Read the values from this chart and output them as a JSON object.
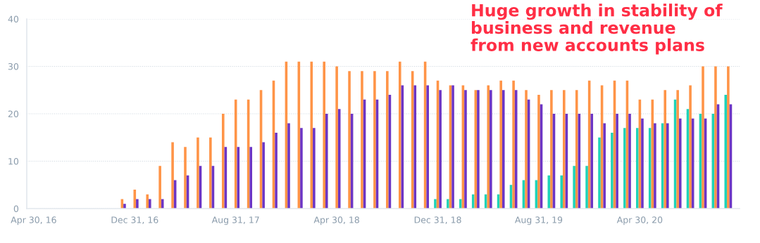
{
  "chart_data": {
    "type": "bar",
    "categories": [
      "Apr 30, 16",
      null,
      null,
      null,
      null,
      null,
      null,
      null,
      "Dec 31, 16",
      null,
      null,
      null,
      null,
      null,
      null,
      null,
      "Aug 31, 17",
      null,
      null,
      null,
      null,
      null,
      null,
      null,
      "Apr 30, 18",
      null,
      null,
      null,
      null,
      null,
      null,
      null,
      "Dec 31, 18",
      null,
      null,
      null,
      null,
      null,
      null,
      null,
      "Aug 31, 19",
      null,
      null,
      null,
      null,
      null,
      null,
      null,
      "Apr 30, 20",
      null,
      null,
      null,
      null,
      null,
      null,
      null
    ],
    "series": [
      {
        "color": "#1ed3b8",
        "values": [
          null,
          null,
          null,
          null,
          null,
          null,
          null,
          null,
          null,
          null,
          null,
          null,
          null,
          null,
          null,
          null,
          null,
          null,
          null,
          null,
          null,
          null,
          null,
          null,
          null,
          null,
          null,
          null,
          null,
          null,
          null,
          null,
          2,
          2,
          2,
          3,
          3,
          3,
          5,
          6,
          6,
          7,
          7,
          9,
          9,
          15,
          16,
          17,
          17,
          17,
          18,
          23,
          21,
          20,
          20,
          24
        ]
      },
      {
        "color": "#ff9447",
        "values": [
          null,
          null,
          null,
          null,
          null,
          null,
          null,
          2,
          4,
          3,
          9,
          14,
          13,
          15,
          15,
          20,
          23,
          23,
          25,
          27,
          31,
          31,
          31,
          31,
          30,
          29,
          29,
          29,
          29,
          31,
          29,
          31,
          27,
          26,
          26,
          25,
          26,
          27,
          27,
          25,
          24,
          25,
          25,
          25,
          27,
          26,
          27,
          27,
          23,
          23,
          25,
          25,
          26,
          30,
          30,
          30
        ]
      },
      {
        "color": "#6c35c4",
        "values": [
          null,
          null,
          null,
          null,
          null,
          null,
          null,
          1,
          2,
          2,
          2,
          6,
          7,
          9,
          9,
          13,
          13,
          13,
          14,
          16,
          18,
          17,
          17,
          20,
          21,
          20,
          23,
          23,
          24,
          26,
          26,
          26,
          25,
          26,
          25,
          25,
          25,
          25,
          25,
          23,
          22,
          20,
          20,
          20,
          20,
          18,
          20,
          20,
          19,
          18,
          18,
          19,
          19,
          19,
          22,
          22
        ]
      }
    ],
    "ylim": [
      0,
      40
    ],
    "yticks": [
      0,
      10,
      20,
      30,
      40
    ],
    "grid": "y",
    "annotations": [
      "Huge growth in stability of\nbusiness and revenue\nfrom new accounts plans"
    ]
  }
}
